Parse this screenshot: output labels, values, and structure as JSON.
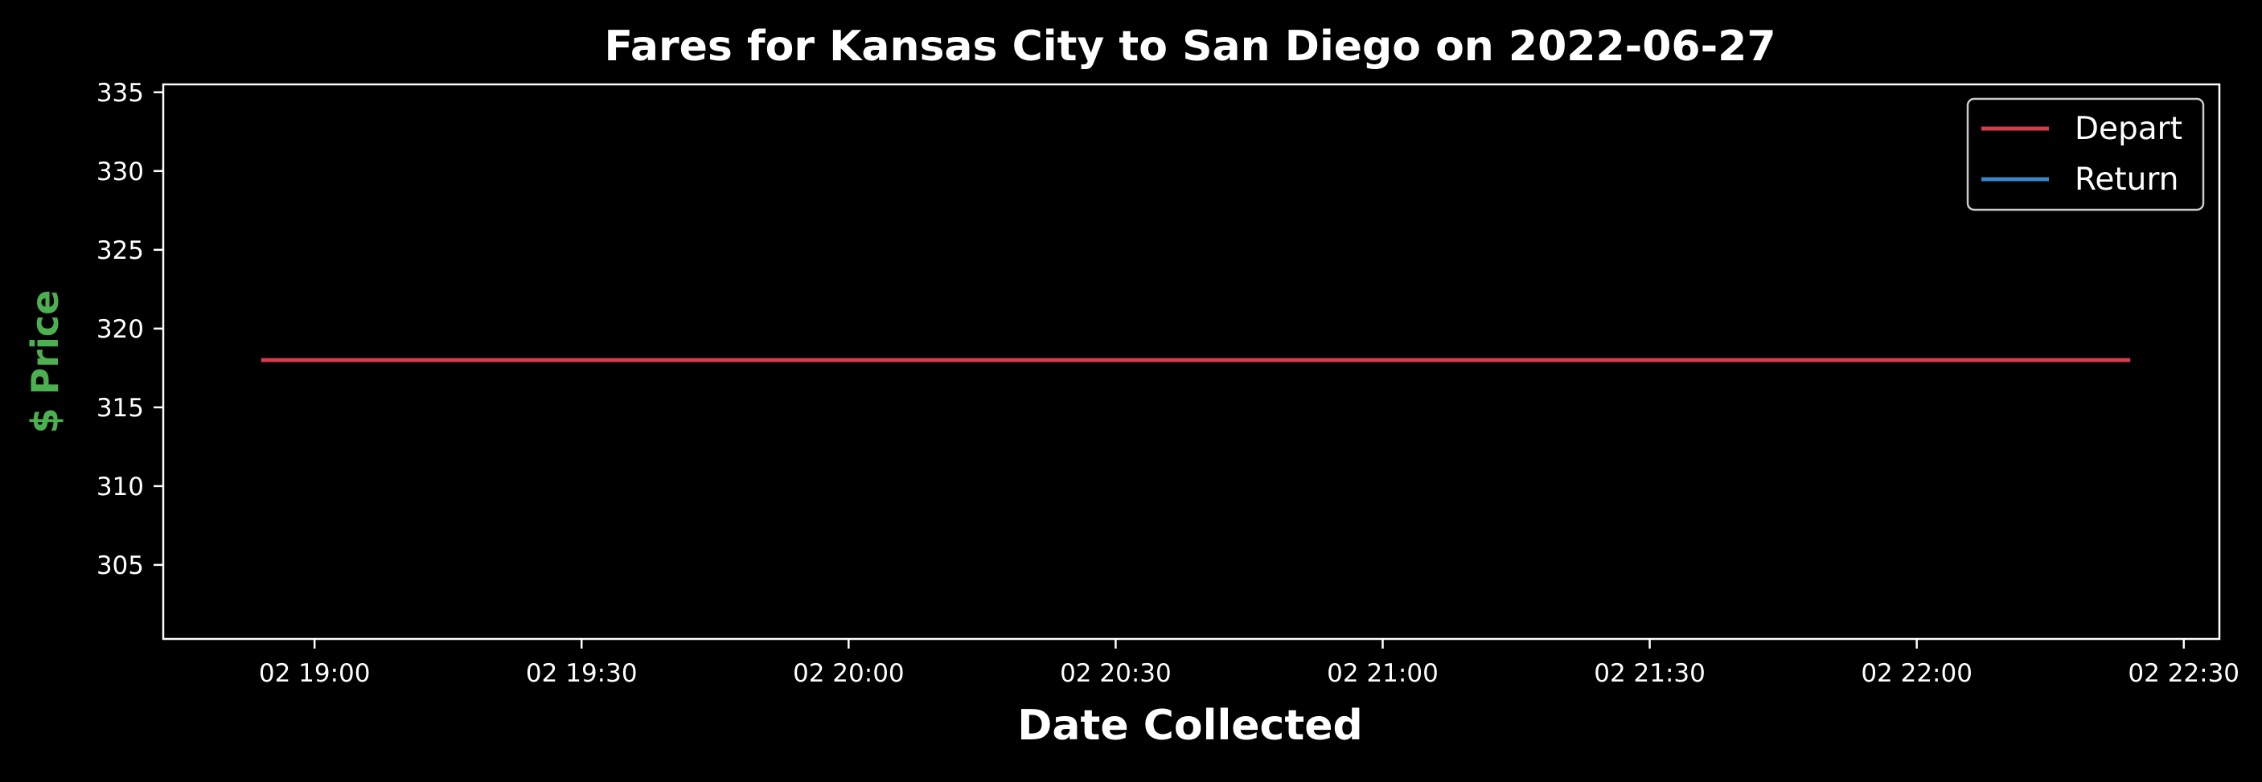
{
  "chart_data": {
    "type": "line",
    "title": "Fares for Kansas City to San Diego on 2022-06-27",
    "xlabel": "Date Collected",
    "ylabel": "$ Price",
    "ylabel_color": "#4caf50",
    "xlim": [
      "2022-06-02 18:43",
      "2022-06-02 22:34"
    ],
    "ylim": [
      300.3,
      335.5
    ],
    "yticks": [
      305,
      310,
      315,
      320,
      325,
      330,
      335
    ],
    "xticks": [
      {
        "value": "2022-06-02 19:00",
        "label": "02 19:00"
      },
      {
        "value": "2022-06-02 19:30",
        "label": "02 19:30"
      },
      {
        "value": "2022-06-02 20:00",
        "label": "02 20:00"
      },
      {
        "value": "2022-06-02 20:30",
        "label": "02 20:30"
      },
      {
        "value": "2022-06-02 21:00",
        "label": "02 21:00"
      },
      {
        "value": "2022-06-02 21:30",
        "label": "02 21:30"
      },
      {
        "value": "2022-06-02 22:00",
        "label": "02 22:00"
      },
      {
        "value": "2022-06-02 22:30",
        "label": "02 22:30"
      }
    ],
    "grid": false,
    "legend_position": "top-right",
    "series": [
      {
        "name": "Depart",
        "color": "#d43d4b",
        "x": [
          "2022-06-02 18:54",
          "2022-06-02 22:24"
        ],
        "y": [
          318,
          318
        ]
      },
      {
        "name": "Return",
        "color": "#3a86c8",
        "x": [],
        "y": []
      }
    ]
  }
}
